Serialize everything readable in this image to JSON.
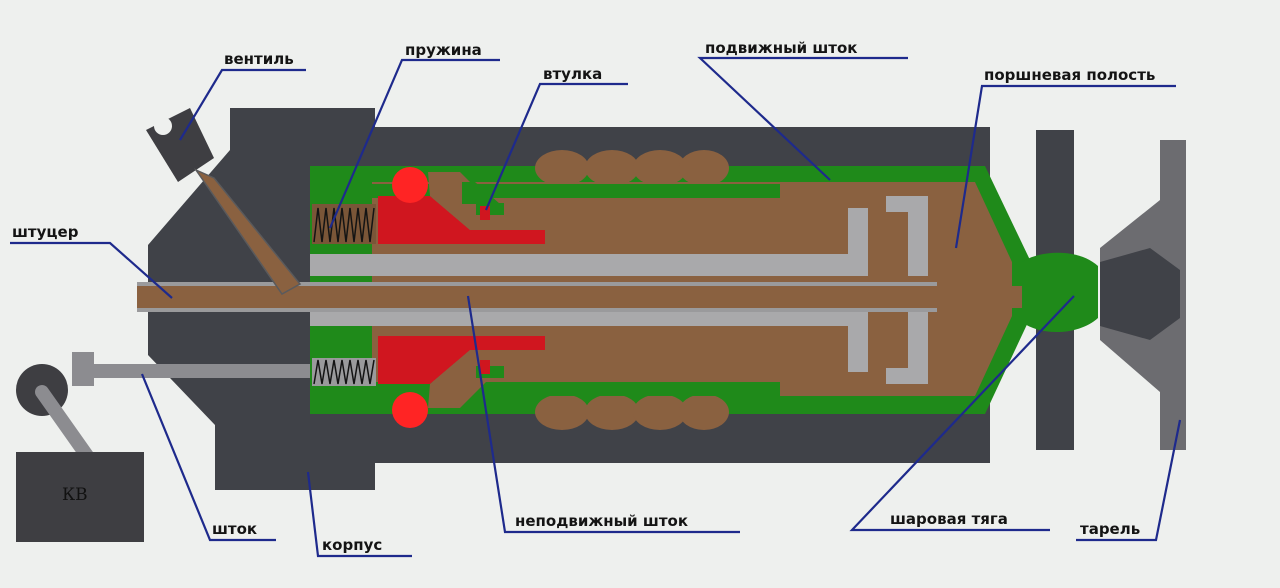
{
  "labels": {
    "ventil": "вентиль",
    "pruzhina": "пружина",
    "vtulka": "втулка",
    "podvizhny_shtok": "подвижный шток",
    "porshnevaya_polost": "поршневая полость",
    "shtutser": "штуцер",
    "shtok": "шток",
    "korpus": "корпус",
    "nepodvizhny_shtok": "неподвижный шток",
    "sharovaya_tyaga": "шаровая тяга",
    "tarel": "тарель",
    "kv": "КВ"
  },
  "colors": {
    "housing": "#404248",
    "green": "#1f8a1a",
    "brown": "#8a6140",
    "gray": "#a9a9ab",
    "red": "#d0161f",
    "bright_red": "#ff2424",
    "leader": "#1e2a8c",
    "disc": "#6c6c70"
  }
}
